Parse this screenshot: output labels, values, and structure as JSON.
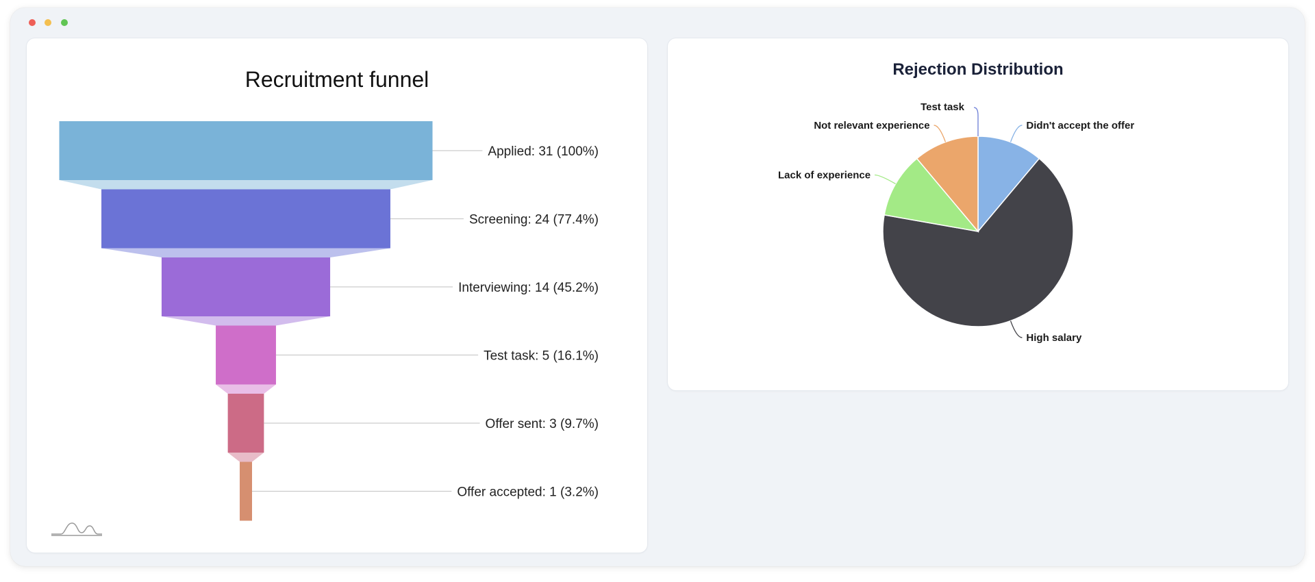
{
  "window": {
    "controls": [
      "close",
      "minimize",
      "zoom"
    ]
  },
  "chart_data": [
    {
      "type": "funnel",
      "title": "Recruitment funnel",
      "categories": [
        "Applied",
        "Screening",
        "Interviewing",
        "Test task",
        "Offer sent",
        "Offer accepted"
      ],
      "values": [
        31,
        24,
        14,
        5,
        3,
        1
      ],
      "labels": [
        "Applied: 31 (100%)",
        "Screening: 24 (77.4%)",
        "Interviewing: 14 (45.2%)",
        "Test task: 5 (16.1%)",
        "Offer sent: 3 (9.7%)",
        "Offer accepted: 1 (3.2%)"
      ],
      "colors": [
        "#7ab3d8",
        "#6b73d6",
        "#9b6bd8",
        "#cf6ec9",
        "#cc6b86",
        "#d68f70"
      ],
      "logo_icon": "wave-logo-icon"
    },
    {
      "type": "pie",
      "title": "Rejection Distribution",
      "categories": [
        "Didn't accept the offer",
        "High salary",
        "Lack of experience",
        "Not relevant experience",
        "Test task"
      ],
      "values": [
        1,
        6,
        1,
        1,
        0
      ],
      "colors": [
        "#88b3e6",
        "#434349",
        "#a3ea86",
        "#eba66b",
        "#6a7cd6"
      ]
    }
  ]
}
